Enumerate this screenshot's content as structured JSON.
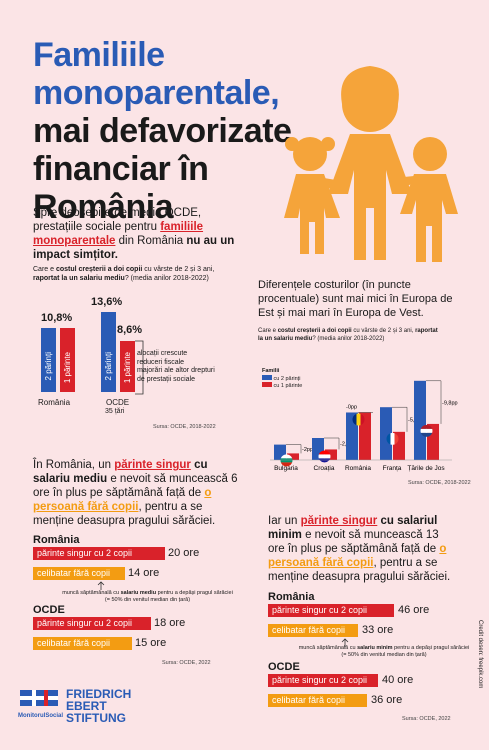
{
  "title": {
    "line1": "Familiile monoparentale,",
    "line2": "mai defavorizate",
    "line3": "financiar în",
    "line4": "România"
  },
  "intro": {
    "t1": "Spre deosebire de media OCDE, prestațiile sociale pentru ",
    "t2": "familiile monoparentale",
    "t3": " din România ",
    "t4": "nu au un impact simțitor."
  },
  "chart1": {
    "q1": "Care e ",
    "q2": "costul creșterii a doi copii",
    "q3": " cu vârste de 2 și 3 ani, ",
    "q4": "raportat la un salariu mediu",
    "q5": "? (media anilor 2018-2022)",
    "source": "Sursa: OCDE, 2018-2022",
    "oecd_sub": "35 țări",
    "annotation": {
      "a1": "alocații crescute",
      "a2": "reduceri fiscale",
      "a3": "majorări ale altor drepturi de prestații sociale"
    }
  },
  "chart2": {
    "desc": "Diferențele costurilor (în puncte procentuale) sunt mai mici în Europa de Est și mai mari în Europa de Vest.",
    "q1": "Care e ",
    "q2": "costul creșterii a doi copii",
    "q3": " cu vârste de 2 și 3 ani, ",
    "q4": "raportat la un salariu mediu",
    "q5": "? (media anilor 2018-2022)",
    "legend_title": "Familii",
    "source": "Sursa: OCDE, 2018-2022"
  },
  "para2": {
    "t1": "În România, un ",
    "t2": "părinte singur",
    "t3": " cu ",
    "t4": "salariu mediu",
    "t5": " e nevoit să muncească 6 ore în plus pe săptămână față de ",
    "t6": "o persoană fără copii",
    "t7": ", pentru a se menține deasupra pragului sărăciei."
  },
  "para3": {
    "t1": "Iar un ",
    "t2": "părinte singur",
    "t3": " cu ",
    "t4": "salariul minim",
    "t5": " e nevoit să muncească 13 ore în plus pe săptămână față de ",
    "t6": "o persoană fără copii",
    "t7": ", pentru a se menține deasupra pragului sărăciei."
  },
  "hours_medium": {
    "romania": "România",
    "oecd": "OCDE",
    "note1": "muncă săptămânală cu ",
    "note2": "salariu mediu",
    "note3": " pentru a depăși pragul sărăciei (= 50% din venitul median din țară)",
    "source": "Sursa: OCDE, 2022"
  },
  "hours_min": {
    "romania": "România",
    "oecd": "OCDE",
    "note1": "muncă săptămânală cu ",
    "note2": "salariu minim",
    "note3": " pentru a depăși pragul sărăciei (= 50% din venitul median din țară)",
    "source": "Sursa: OCDE, 2022"
  },
  "credit": "Credit desen: freepik.com",
  "logos": {
    "ms": "MonitorulSocial",
    "fes1": "FRIEDRICH",
    "fes2": "EBERT",
    "fes3": "STIFTUNG"
  },
  "colors": {
    "blue": "#2a5bb5",
    "red": "#d9222a",
    "orange": "#f39c12",
    "background": "#fbe4e6"
  },
  "chart_data": [
    {
      "type": "bar",
      "categories": [
        "România",
        "OCDE"
      ],
      "series": [
        {
          "name": "2 părinți",
          "values": [
            10.8,
            13.6
          ]
        },
        {
          "name": "1 părinte",
          "values": [
            10.8,
            8.6
          ]
        }
      ],
      "value_labels": [
        "10,8%",
        "13,6%",
        "8,6%"
      ],
      "bar_labels": [
        "2 părinți",
        "1 părinte",
        "2 părinți",
        "1 părinte"
      ]
    },
    {
      "type": "bar",
      "categories": [
        "Bulgaria",
        "Croația",
        "România",
        "Franța",
        "Țările de Jos"
      ],
      "series": [
        {
          "name": "cu 2 părinți",
          "values": [
            3.5,
            5,
            10.8,
            12,
            18
          ]
        },
        {
          "name": "cu 1 părinte",
          "values": [
            1.5,
            2.4,
            10.8,
            6.4,
            8.2
          ]
        }
      ],
      "differences": [
        "-2pp",
        "-2,6pp",
        "-0pp",
        "-5,6pp",
        "-9,8pp"
      ]
    },
    {
      "type": "bar",
      "orientation": "horizontal",
      "title": "salariu mediu",
      "categories": [
        "părinte singur cu 2 copii",
        "celibatar fără copii"
      ],
      "series": [
        {
          "name": "România",
          "values": [
            20,
            14
          ]
        },
        {
          "name": "OCDE",
          "values": [
            18,
            15
          ]
        }
      ],
      "value_labels": [
        "20 ore",
        "14 ore",
        "18 ore",
        "15 ore"
      ]
    },
    {
      "type": "bar",
      "orientation": "horizontal",
      "title": "salariu minim",
      "categories": [
        "părinte singur cu 2 copii",
        "celibatar fără copii"
      ],
      "series": [
        {
          "name": "România",
          "values": [
            46,
            33
          ]
        },
        {
          "name": "OCDE",
          "values": [
            40,
            36
          ]
        }
      ],
      "value_labels": [
        "46 ore",
        "33 ore",
        "40 ore",
        "36 ore"
      ]
    }
  ]
}
